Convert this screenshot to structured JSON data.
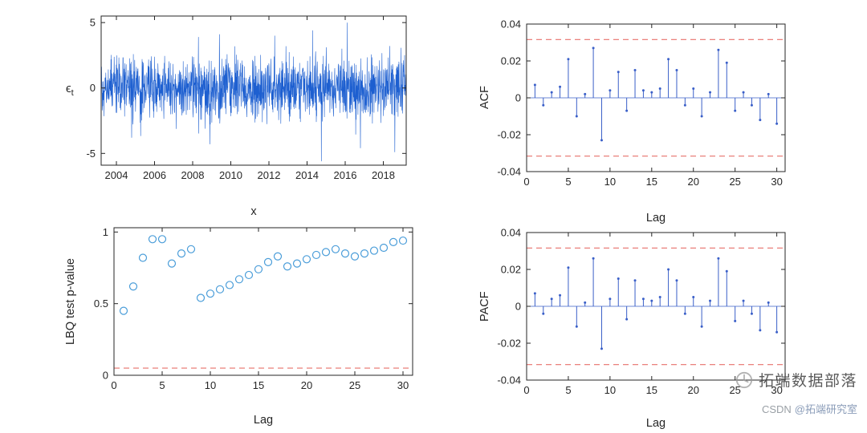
{
  "page": {
    "background": "#ffffff"
  },
  "watermark": {
    "brand": "拓端数据部落",
    "credit_prefix": "CSDN",
    "credit_handle": "@拓端研究室"
  },
  "chart_data": [
    {
      "name": "residuals",
      "type": "line",
      "title": "",
      "xlabel": "x",
      "ylabel": "ϵ",
      "ylabel_sub": "t",
      "xlim": [
        2003.2,
        2019.2
      ],
      "ylim": [
        -5.9,
        5.5
      ],
      "x_ticks": [
        2004,
        2006,
        2008,
        2010,
        2012,
        2014,
        2016,
        2018
      ],
      "x_tick_labels": [
        "2004",
        "2006",
        "2008",
        "2010",
        "2012",
        "2014",
        "2016",
        "2018"
      ],
      "y_ticks": [
        5,
        0,
        -5
      ],
      "y_tick_labels": [
        "5",
        "0",
        "-5"
      ],
      "grid": false,
      "line_color": "#1d5fd0",
      "noise": {
        "seed": 20240315,
        "n": 1500,
        "sd": 1.12,
        "spike_prob": 0.012,
        "spike_gain": 1.7
      },
      "spikes": [
        {
          "x": 2004.8,
          "y": -3.8
        },
        {
          "x": 2008.3,
          "y": 3.9
        },
        {
          "x": 2008.9,
          "y": -4.3
        },
        {
          "x": 2009.4,
          "y": 4.1
        },
        {
          "x": 2012.3,
          "y": 4.0
        },
        {
          "x": 2014.3,
          "y": 4.4
        },
        {
          "x": 2014.75,
          "y": -5.6
        },
        {
          "x": 2016.1,
          "y": 5.0
        },
        {
          "x": 2016.8,
          "y": -4.6
        },
        {
          "x": 2018.6,
          "y": -4.9
        }
      ]
    },
    {
      "name": "acf",
      "type": "stem",
      "title": "",
      "xlabel": "Lag",
      "ylabel": "ACF",
      "xlim": [
        0,
        31
      ],
      "ylim": [
        -0.04,
        0.04
      ],
      "x_ticks": [
        0,
        5,
        10,
        15,
        20,
        25,
        30
      ],
      "x_tick_labels": [
        "0",
        "5",
        "10",
        "15",
        "20",
        "25",
        "30"
      ],
      "y_ticks": [
        0.04,
        0.02,
        0,
        -0.02,
        -0.04
      ],
      "y_tick_labels": [
        "0.04",
        "0.02",
        "0",
        "-0.02",
        "-0.04"
      ],
      "grid": false,
      "lags": [
        1,
        2,
        3,
        4,
        5,
        6,
        7,
        8,
        9,
        10,
        11,
        12,
        13,
        14,
        15,
        16,
        17,
        18,
        19,
        20,
        21,
        22,
        23,
        24,
        25,
        26,
        27,
        28,
        29,
        30
      ],
      "values": [
        0.007,
        -0.004,
        0.003,
        0.006,
        0.021,
        -0.01,
        0.002,
        0.027,
        -0.023,
        0.004,
        0.014,
        -0.007,
        0.015,
        0.004,
        0.003,
        0.005,
        0.021,
        0.015,
        -0.004,
        0.005,
        -0.01,
        0.003,
        0.026,
        0.019,
        -0.007,
        0.003,
        -0.004,
        -0.012,
        0.002,
        -0.014
      ],
      "conf_bound": 0.0316,
      "stem_color": "#3a5fc8",
      "bound_color": "#e8716b"
    },
    {
      "name": "lbq",
      "type": "scatter",
      "title": "",
      "xlabel": "Lag",
      "ylabel": "LBQ test p-value",
      "xlim": [
        0,
        31
      ],
      "ylim": [
        0,
        1.03
      ],
      "x_ticks": [
        0,
        5,
        10,
        15,
        20,
        25,
        30
      ],
      "x_tick_labels": [
        "0",
        "5",
        "10",
        "15",
        "20",
        "25",
        "30"
      ],
      "y_ticks": [
        1,
        0.5,
        0
      ],
      "y_tick_labels": [
        "1",
        "0.5",
        "0"
      ],
      "grid": false,
      "lags": [
        1,
        2,
        3,
        4,
        5,
        6,
        7,
        8,
        9,
        10,
        11,
        12,
        13,
        14,
        15,
        16,
        17,
        18,
        19,
        20,
        21,
        22,
        23,
        24,
        25,
        26,
        27,
        28,
        29,
        30
      ],
      "values": [
        0.45,
        0.62,
        0.82,
        0.95,
        0.95,
        0.78,
        0.85,
        0.88,
        0.54,
        0.57,
        0.6,
        0.63,
        0.67,
        0.7,
        0.74,
        0.79,
        0.83,
        0.76,
        0.78,
        0.81,
        0.84,
        0.86,
        0.88,
        0.85,
        0.83,
        0.85,
        0.87,
        0.89,
        0.93,
        0.94
      ],
      "threshold": 0.05,
      "marker_color": "#4a9dd9",
      "threshold_color": "#e8716b"
    },
    {
      "name": "pacf",
      "type": "stem",
      "title": "",
      "xlabel": "Lag",
      "ylabel": "PACF",
      "xlim": [
        0,
        31
      ],
      "ylim": [
        -0.04,
        0.04
      ],
      "x_ticks": [
        0,
        5,
        10,
        15,
        20,
        25,
        30
      ],
      "x_tick_labels": [
        "0",
        "5",
        "10",
        "15",
        "20",
        "25",
        "30"
      ],
      "y_ticks": [
        0.04,
        0.02,
        0,
        -0.02,
        -0.04
      ],
      "y_tick_labels": [
        "0.04",
        "0.02",
        "0",
        "-0.02",
        "-0.04"
      ],
      "grid": false,
      "lags": [
        1,
        2,
        3,
        4,
        5,
        6,
        7,
        8,
        9,
        10,
        11,
        12,
        13,
        14,
        15,
        16,
        17,
        18,
        19,
        20,
        21,
        22,
        23,
        24,
        25,
        26,
        27,
        28,
        29,
        30
      ],
      "values": [
        0.007,
        -0.004,
        0.004,
        0.006,
        0.021,
        -0.011,
        0.002,
        0.026,
        -0.023,
        0.004,
        0.015,
        -0.007,
        0.014,
        0.004,
        0.003,
        0.005,
        0.02,
        0.014,
        -0.004,
        0.005,
        -0.011,
        0.003,
        0.026,
        0.019,
        -0.008,
        0.003,
        -0.004,
        -0.013,
        0.002,
        -0.014
      ],
      "conf_bound": 0.0316,
      "stem_color": "#3a5fc8",
      "bound_color": "#e8716b"
    }
  ]
}
